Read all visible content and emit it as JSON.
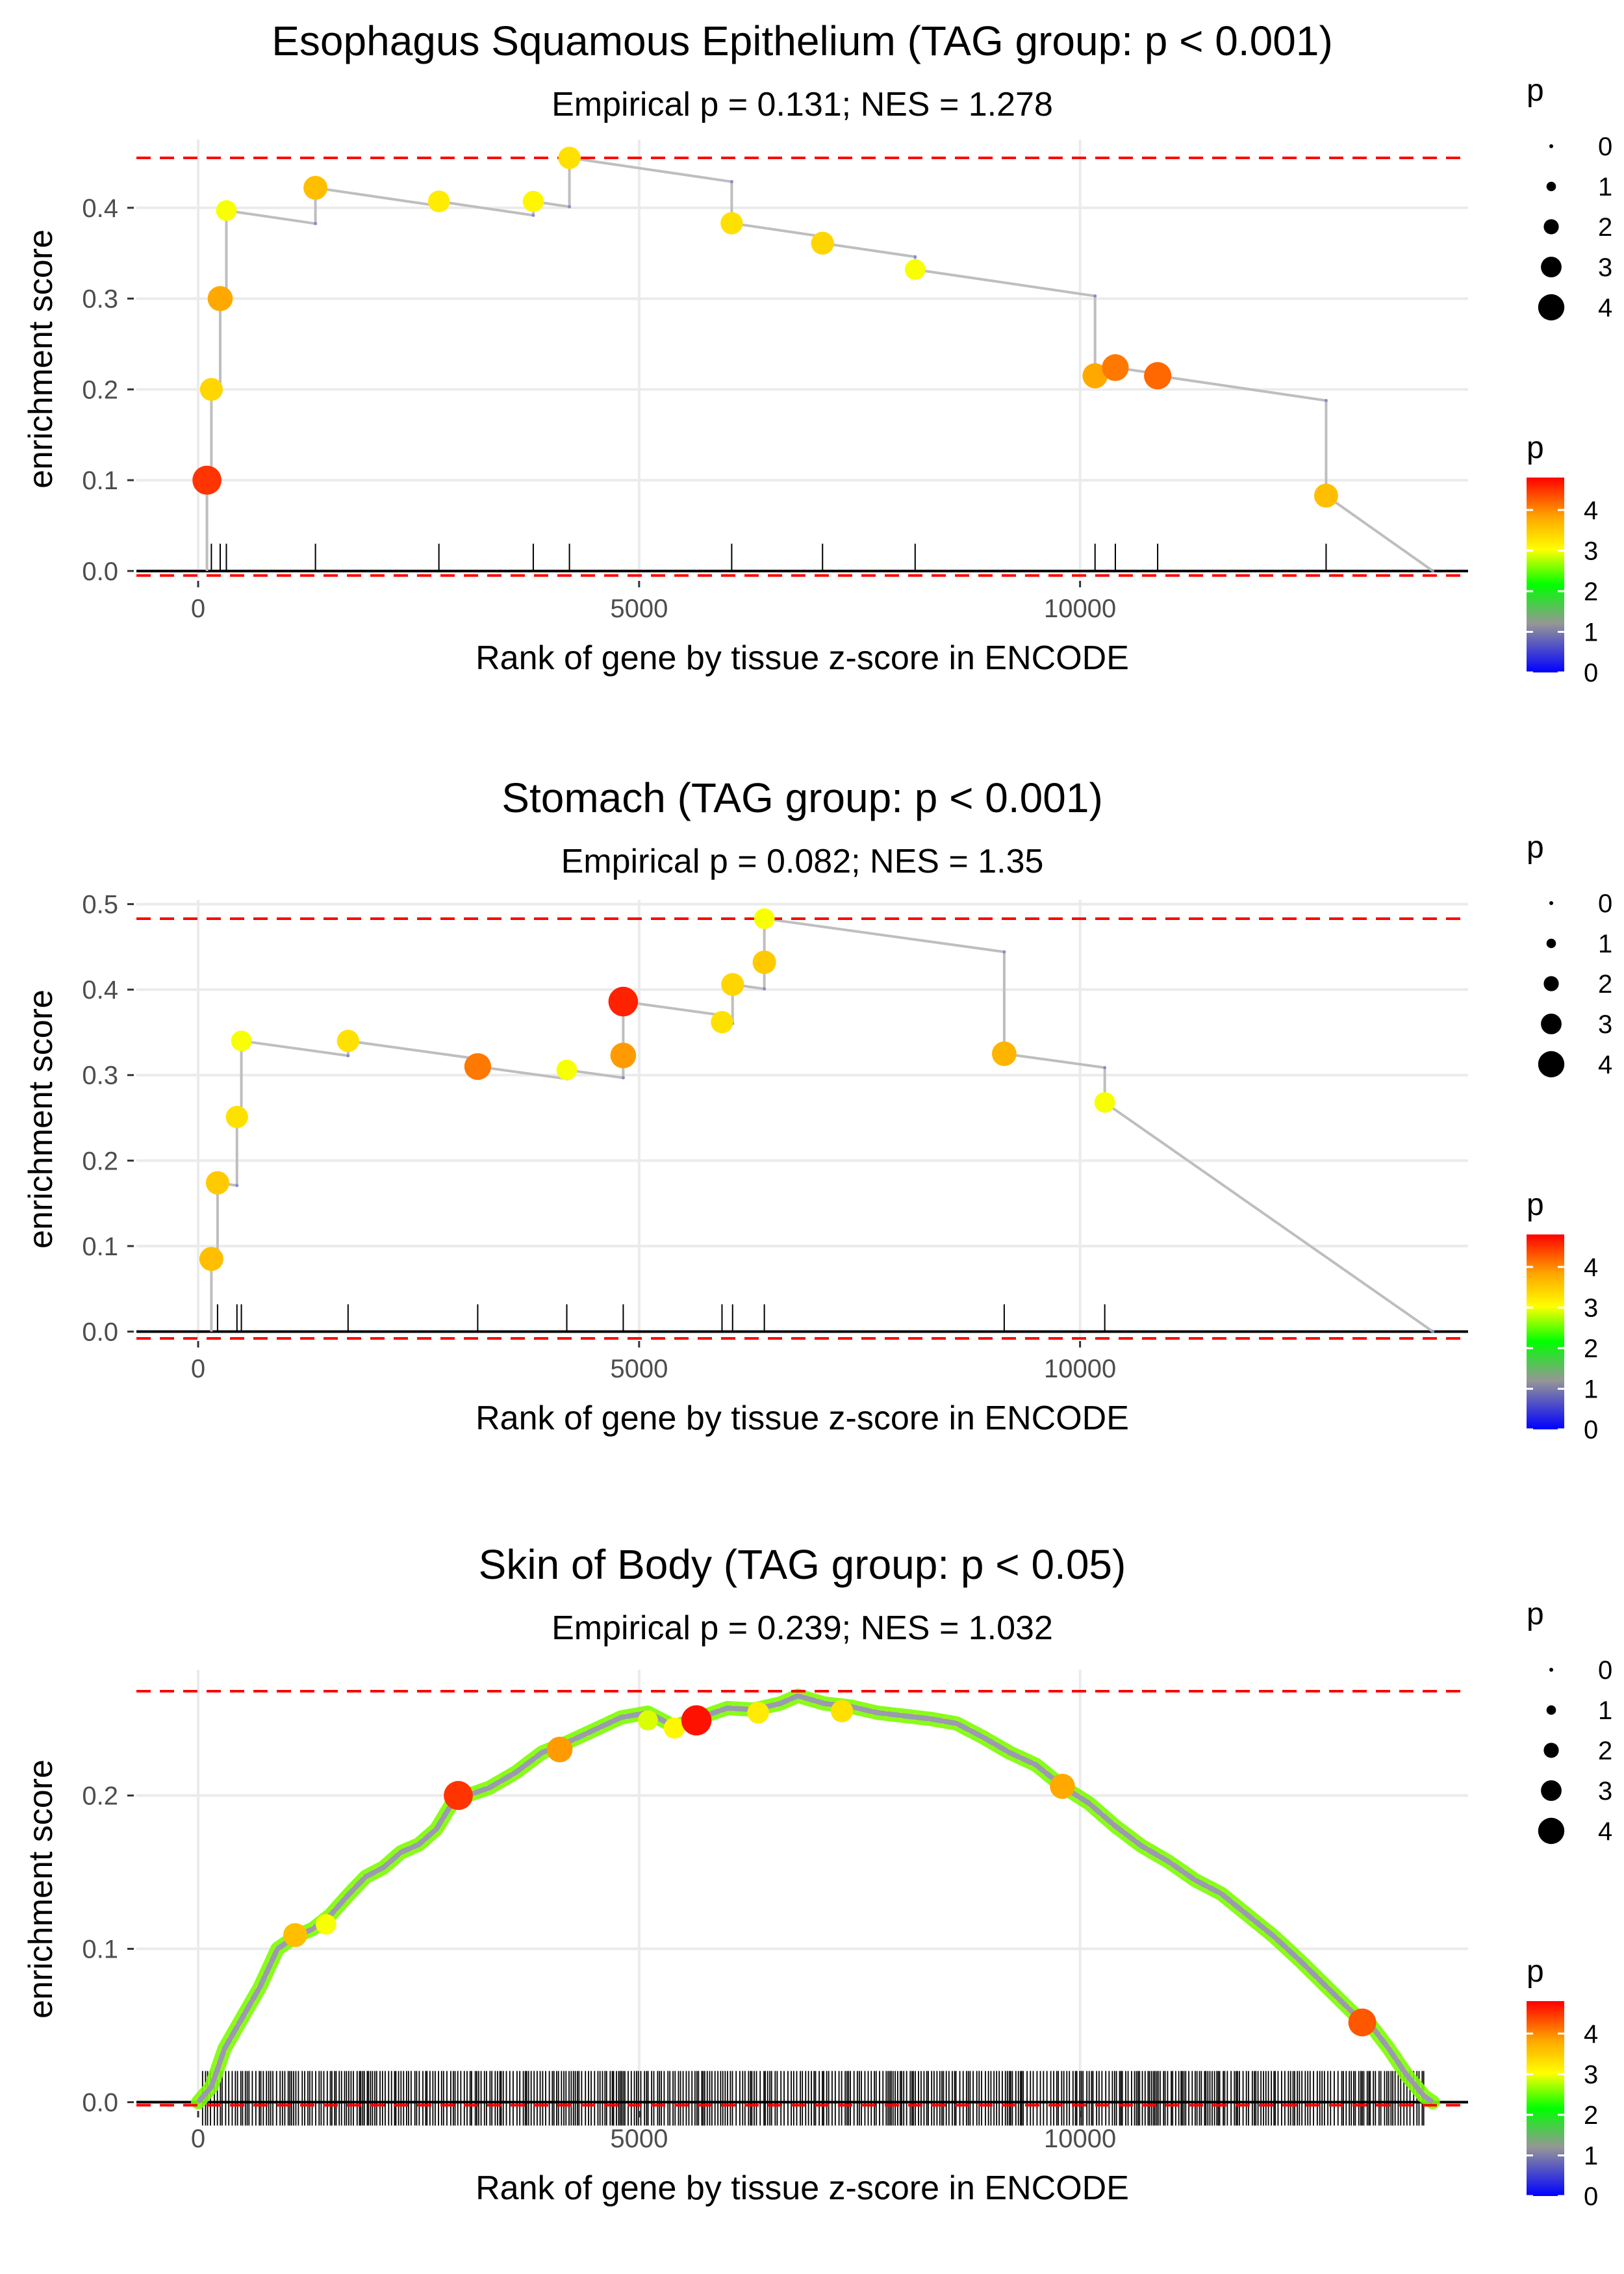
{
  "colors": {
    "threshold": "#ff0000",
    "running_line": "#bebebe",
    "grid": "#ebebeb",
    "baseline": "#000000"
  },
  "legend": {
    "size_title": "p",
    "size_levels": [
      "0",
      "1",
      "2",
      "3",
      "4"
    ],
    "color_title": "p",
    "color_ticks": [
      "0",
      "1",
      "2",
      "3",
      "4"
    ],
    "color_range": [
      0,
      4.8
    ]
  },
  "chart_data": [
    {
      "type": "scatter",
      "title": "Esophagus Squamous Epithelium (TAG group: p < 0.001)",
      "subtitle": "Empirical p = 0.131; NES = 1.278",
      "xlabel": "Rank of gene by tissue z-score in ENCODE",
      "ylabel": "enrichment score",
      "xlim": [
        -700,
        14400
      ],
      "ylim": [
        -0.008,
        0.475
      ],
      "x_ticks": [
        0,
        5000,
        10000
      ],
      "x_tick_labels": [
        "0",
        "5000",
        "10000"
      ],
      "y_ticks": [
        0.0,
        0.1,
        0.2,
        0.3,
        0.4
      ],
      "y_tick_labels": [
        "0.0",
        "0.1",
        "0.2",
        "0.3",
        "0.4"
      ],
      "threshold_lines": [
        0.455,
        -0.005
      ],
      "end_x": 14000,
      "rug": [
        100,
        150,
        250,
        320,
        1330,
        2730,
        3800,
        4210,
        6050,
        7080,
        8130,
        10170,
        10400,
        10880,
        12790
      ],
      "points": [
        {
          "x": 100,
          "y": 0.1,
          "p": 4.5
        },
        {
          "x": 150,
          "y": 0.2,
          "p": 3.4
        },
        {
          "x": 250,
          "y": 0.3,
          "p": 3.8
        },
        {
          "x": 320,
          "y": 0.397,
          "p": 3.0
        },
        {
          "x": 1330,
          "y": 0.422,
          "p": 3.6
        },
        {
          "x": 2730,
          "y": 0.407,
          "p": 3.2
        },
        {
          "x": 3800,
          "y": 0.407,
          "p": 3.1
        },
        {
          "x": 4210,
          "y": 0.455,
          "p": 3.3
        },
        {
          "x": 6050,
          "y": 0.383,
          "p": 3.3
        },
        {
          "x": 7080,
          "y": 0.361,
          "p": 3.4
        },
        {
          "x": 8130,
          "y": 0.332,
          "p": 3.0
        },
        {
          "x": 10170,
          "y": 0.215,
          "p": 3.8
        },
        {
          "x": 10400,
          "y": 0.224,
          "p": 4.1
        },
        {
          "x": 10880,
          "y": 0.215,
          "p": 4.2
        },
        {
          "x": 12790,
          "y": 0.083,
          "p": 3.6
        }
      ]
    },
    {
      "type": "scatter",
      "title": "Stomach (TAG group: p < 0.001)",
      "subtitle": "Empirical p = 0.082; NES = 1.35",
      "xlabel": "Rank of gene by tissue z-score in ENCODE",
      "ylabel": "enrichment score",
      "xlim": [
        -700,
        14400
      ],
      "ylim": [
        -0.008,
        0.505
      ],
      "x_ticks": [
        0,
        5000,
        10000
      ],
      "x_tick_labels": [
        "0",
        "5000",
        "10000"
      ],
      "y_ticks": [
        0.0,
        0.1,
        0.2,
        0.3,
        0.4,
        0.5
      ],
      "y_tick_labels": [
        "0.0",
        "0.1",
        "0.2",
        "0.3",
        "0.4",
        "0.5"
      ],
      "threshold_lines": [
        0.483,
        -0.008
      ],
      "end_x": 14000,
      "rug": [
        150,
        220,
        440,
        490,
        1700,
        3170,
        4180,
        4820,
        5940,
        6060,
        6420,
        9140,
        10280
      ],
      "points": [
        {
          "x": 150,
          "y": 0.085,
          "p": 3.6
        },
        {
          "x": 220,
          "y": 0.174,
          "p": 3.5
        },
        {
          "x": 440,
          "y": 0.251,
          "p": 3.3
        },
        {
          "x": 490,
          "y": 0.34,
          "p": 3.0
        },
        {
          "x": 1700,
          "y": 0.34,
          "p": 3.3
        },
        {
          "x": 3170,
          "y": 0.31,
          "p": 4.1
        },
        {
          "x": 4180,
          "y": 0.306,
          "p": 3.0
        },
        {
          "x": 4820,
          "y": 0.323,
          "p": 3.9
        },
        {
          "x": 4820,
          "y": 0.386,
          "p": 4.6
        },
        {
          "x": 5940,
          "y": 0.362,
          "p": 3.3
        },
        {
          "x": 6060,
          "y": 0.406,
          "p": 3.4
        },
        {
          "x": 6420,
          "y": 0.432,
          "p": 3.5
        },
        {
          "x": 6420,
          "y": 0.483,
          "p": 3.0
        },
        {
          "x": 9140,
          "y": 0.325,
          "p": 3.7
        },
        {
          "x": 10280,
          "y": 0.268,
          "p": 3.0
        }
      ]
    },
    {
      "type": "scatter",
      "title": "Skin of Body (TAG group: p < 0.05)",
      "subtitle": "Empirical p = 0.239; NES = 1.032",
      "xlabel": "Rank of gene by tissue z-score in ENCODE",
      "ylabel": "enrichment score",
      "xlim": [
        -700,
        14400
      ],
      "ylim": [
        -0.004,
        0.282
      ],
      "x_ticks": [
        0,
        5000,
        10000
      ],
      "x_tick_labels": [
        "0",
        "5000",
        "10000"
      ],
      "y_ticks": [
        0.0,
        0.1,
        0.2
      ],
      "y_tick_labels": [
        "0.0",
        "0.1",
        "0.2"
      ],
      "threshold_lines": [
        0.268,
        -0.002
      ],
      "end_x": 14000,
      "curve": [
        [
          0,
          0.0
        ],
        [
          150,
          0.01
        ],
        [
          300,
          0.035
        ],
        [
          500,
          0.055
        ],
        [
          700,
          0.075
        ],
        [
          900,
          0.1
        ],
        [
          1100,
          0.108
        ],
        [
          1300,
          0.113
        ],
        [
          1500,
          0.122
        ],
        [
          1700,
          0.135
        ],
        [
          1900,
          0.147
        ],
        [
          2100,
          0.153
        ],
        [
          2300,
          0.163
        ],
        [
          2500,
          0.168
        ],
        [
          2700,
          0.178
        ],
        [
          2900,
          0.197
        ],
        [
          3100,
          0.201
        ],
        [
          3300,
          0.205
        ],
        [
          3600,
          0.215
        ],
        [
          3900,
          0.228
        ],
        [
          4200,
          0.235
        ],
        [
          4500,
          0.243
        ],
        [
          4800,
          0.251
        ],
        [
          5100,
          0.254
        ],
        [
          5400,
          0.245
        ],
        [
          5700,
          0.251
        ],
        [
          6000,
          0.257
        ],
        [
          6300,
          0.256
        ],
        [
          6600,
          0.26
        ],
        [
          6800,
          0.265
        ],
        [
          7100,
          0.26
        ],
        [
          7400,
          0.258
        ],
        [
          7700,
          0.254
        ],
        [
          8000,
          0.252
        ],
        [
          8300,
          0.25
        ],
        [
          8600,
          0.247
        ],
        [
          8900,
          0.238
        ],
        [
          9200,
          0.228
        ],
        [
          9500,
          0.22
        ],
        [
          9800,
          0.206
        ],
        [
          10100,
          0.195
        ],
        [
          10400,
          0.18
        ],
        [
          10700,
          0.167
        ],
        [
          11000,
          0.157
        ],
        [
          11300,
          0.145
        ],
        [
          11600,
          0.136
        ],
        [
          11900,
          0.122
        ],
        [
          12200,
          0.108
        ],
        [
          12500,
          0.092
        ],
        [
          12800,
          0.075
        ],
        [
          13100,
          0.058
        ],
        [
          13300,
          0.05
        ],
        [
          13500,
          0.035
        ],
        [
          13700,
          0.018
        ],
        [
          13900,
          0.004
        ],
        [
          14000,
          0.0
        ]
      ],
      "points": [
        {
          "x": 1100,
          "y": 0.109,
          "p": 3.6
        },
        {
          "x": 1450,
          "y": 0.116,
          "p": 3.0
        },
        {
          "x": 2950,
          "y": 0.2,
          "p": 4.5
        },
        {
          "x": 4100,
          "y": 0.23,
          "p": 3.9
        },
        {
          "x": 5100,
          "y": 0.249,
          "p": 2.9
        },
        {
          "x": 5400,
          "y": 0.244,
          "p": 3.1
        },
        {
          "x": 5650,
          "y": 0.249,
          "p": 4.7
        },
        {
          "x": 6350,
          "y": 0.254,
          "p": 3.2
        },
        {
          "x": 7300,
          "y": 0.255,
          "p": 3.3
        },
        {
          "x": 9800,
          "y": 0.206,
          "p": 3.8
        },
        {
          "x": 13200,
          "y": 0.052,
          "p": 4.3
        }
      ]
    }
  ]
}
